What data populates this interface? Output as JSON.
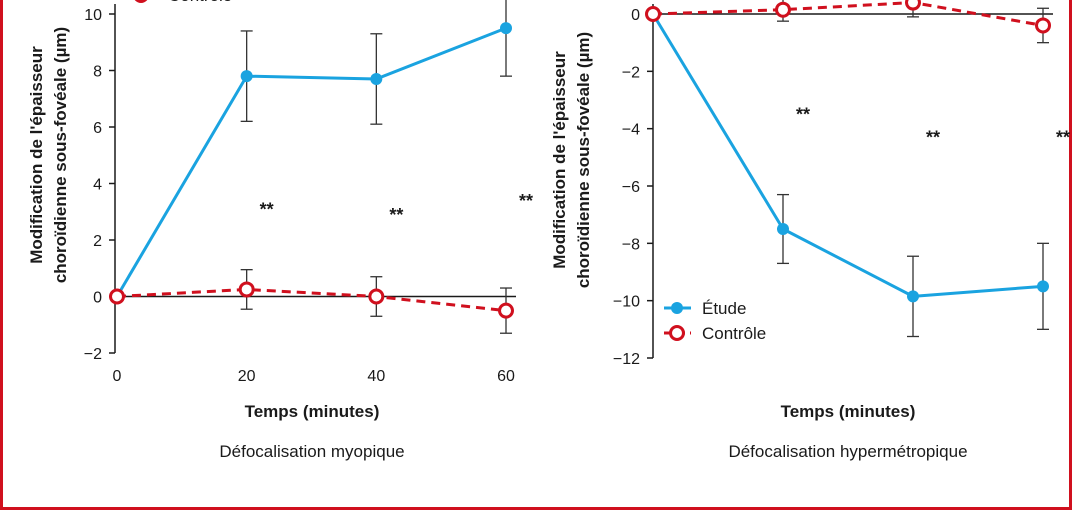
{
  "colors": {
    "study": "#1aa3e0",
    "control": "#d0101e",
    "frame": "#d0101e",
    "axis": "#1a1a1a"
  },
  "legend": {
    "study": "Étude",
    "control": "Contrôle"
  },
  "chart_data": [
    {
      "type": "line",
      "caption": "Défocalisation myopique",
      "xlabel": "Temps (minutes)",
      "ylabel": [
        "Modification de l'épaisseur",
        "choroïdienne sous-fovéale (µm)"
      ],
      "x": [
        0,
        20,
        40,
        60
      ],
      "xticks": [
        "0",
        "20",
        "40",
        "60"
      ],
      "yticks": [
        "10",
        "8",
        "6",
        "4",
        "2",
        "0",
        "−2"
      ],
      "ylim": [
        -2,
        10
      ],
      "series": [
        {
          "name": "Étude",
          "key": "study",
          "values": [
            0,
            7.8,
            7.7,
            9.5
          ],
          "err": [
            null,
            1.6,
            1.6,
            1.7
          ],
          "style": "solid",
          "marker": "filled-circle"
        },
        {
          "name": "Contrôle",
          "key": "control",
          "values": [
            0,
            0.25,
            0,
            -0.5
          ],
          "err": [
            null,
            0.7,
            0.7,
            0.8
          ],
          "style": "dashed",
          "marker": "open-circle"
        }
      ],
      "annotations": [
        {
          "x": 20,
          "y": 3.3,
          "text": "**"
        },
        {
          "x": 40,
          "y": 3.1,
          "text": "**"
        },
        {
          "x": 60,
          "y": 3.6,
          "text": "**"
        }
      ]
    },
    {
      "type": "line",
      "caption": "Défocalisation hypermétropique",
      "xlabel": "Temps (minutes)",
      "ylabel": [
        "Modification de l'épaisseur",
        "choroïdienne sous-fovéale (µm)"
      ],
      "x": [
        0,
        20,
        40,
        60
      ],
      "xticks": [],
      "yticks": [
        "0",
        "−2",
        "−4",
        "−6",
        "−8",
        "−10",
        "−12"
      ],
      "ylim": [
        -12,
        0
      ],
      "series": [
        {
          "name": "Étude",
          "key": "study",
          "values": [
            0,
            -7.5,
            -9.85,
            -9.5
          ],
          "err": [
            null,
            1.2,
            1.4,
            1.5
          ],
          "style": "solid",
          "marker": "filled-circle"
        },
        {
          "name": "Contrôle",
          "key": "control",
          "values": [
            0,
            0.15,
            0.4,
            -0.4
          ],
          "err": [
            null,
            0.4,
            0.5,
            0.6
          ],
          "style": "dashed",
          "marker": "open-circle"
        }
      ],
      "annotations": [
        {
          "x": 20,
          "y": -3.3,
          "text": "**"
        },
        {
          "x": 40,
          "y": -4.1,
          "text": "**"
        },
        {
          "x": 60,
          "y": -4.1,
          "text": "**"
        }
      ]
    }
  ]
}
